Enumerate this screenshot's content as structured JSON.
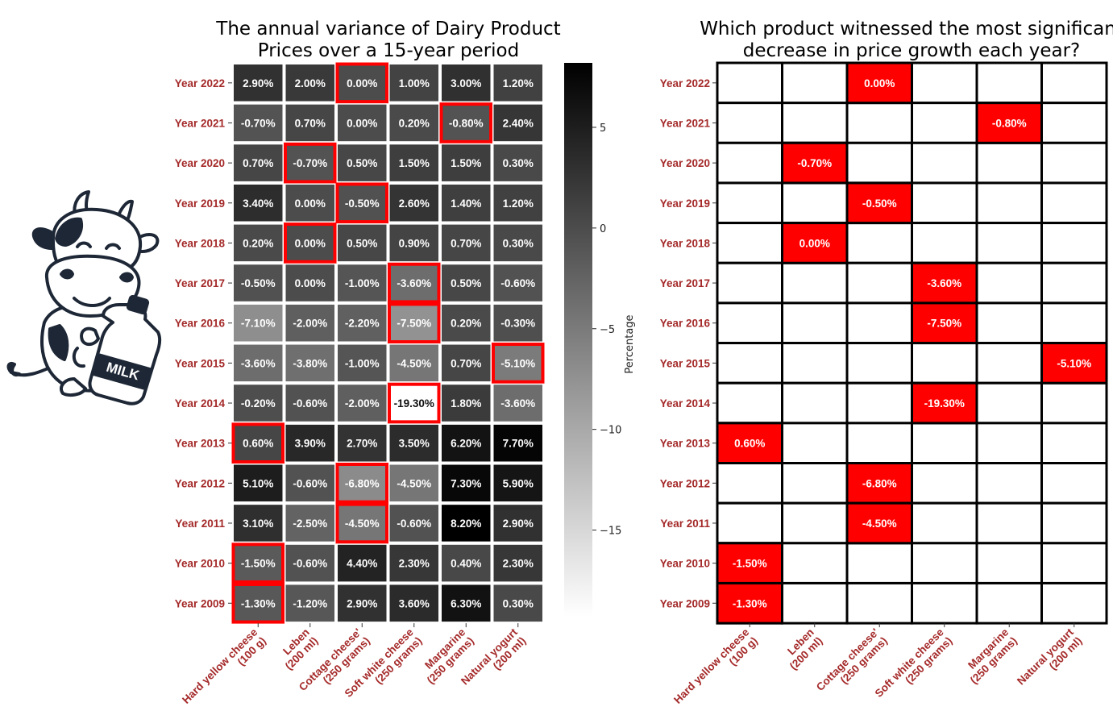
{
  "colors": {
    "label": "#a52a2a",
    "highlight": "#ff0000",
    "grid": "#000000"
  },
  "icons": [
    "cow-with-milk-bottle-icon"
  ],
  "illustration": {
    "bottle_text": "MILK"
  },
  "chart_data": [
    {
      "type": "heatmap",
      "title": "The annual variance of Dairy Product Prices over a 15-year period",
      "title_lines": [
        "The annual variance of Dairy Product",
        "Prices over a 15-year period"
      ],
      "colormap": "grey (white = low, black = high)",
      "colorbar": {
        "label": "Percentage",
        "range": [
          -19.3,
          8.2
        ],
        "ticks": [
          5,
          0,
          -5,
          -10,
          -15
        ],
        "tick_labels": [
          "5",
          "0",
          "−5",
          "−10",
          "−15"
        ]
      },
      "value_format": "percent, 2 decimals",
      "rows": [
        "Year 2022",
        "Year 2021",
        "Year 2020",
        "Year 2019",
        "Year 2018",
        "Year 2017",
        "Year 2016",
        "Year 2015",
        "Year 2014",
        "Year 2013",
        "Year 2012",
        "Year 2011",
        "Year 2010",
        "Year 2009"
      ],
      "columns": [
        [
          "Hard yellow cheese",
          "(100 g)"
        ],
        [
          "Leben",
          "(200 ml)"
        ],
        [
          "Cottage cheese'",
          "(250 grams)"
        ],
        [
          "Soft white cheese",
          "(250 grams)"
        ],
        [
          "Margarine",
          "(250 grams)"
        ],
        [
          "Natural yogurt",
          "(200 ml)"
        ]
      ],
      "values": [
        [
          2.9,
          2.0,
          0.0,
          1.0,
          3.0,
          1.2
        ],
        [
          -0.7,
          0.7,
          0.0,
          0.2,
          -0.8,
          2.4
        ],
        [
          0.7,
          -0.7,
          0.5,
          1.5,
          1.5,
          0.3
        ],
        [
          3.4,
          0.0,
          -0.5,
          2.6,
          1.4,
          1.2
        ],
        [
          0.2,
          0.0,
          0.5,
          0.9,
          0.7,
          0.3
        ],
        [
          -0.5,
          0.0,
          -1.0,
          -3.6,
          0.5,
          -0.6
        ],
        [
          -7.1,
          -2.0,
          -2.2,
          -7.5,
          0.2,
          -0.3
        ],
        [
          -3.6,
          -3.8,
          -1.0,
          -4.5,
          0.7,
          -5.1
        ],
        [
          -0.2,
          -0.6,
          -2.0,
          -19.3,
          1.8,
          -3.6
        ],
        [
          0.6,
          3.9,
          2.7,
          3.5,
          6.2,
          7.7
        ],
        [
          5.1,
          -0.6,
          -6.8,
          -4.5,
          7.3,
          5.9
        ],
        [
          3.1,
          -2.5,
          -4.5,
          -0.6,
          8.2,
          2.9
        ],
        [
          -1.5,
          -0.6,
          4.4,
          2.3,
          0.4,
          2.3
        ],
        [
          -1.3,
          -1.2,
          2.9,
          3.6,
          6.3,
          0.3
        ]
      ],
      "highlighted_column_per_row": [
        2,
        4,
        1,
        2,
        1,
        3,
        3,
        5,
        3,
        0,
        2,
        2,
        0,
        0
      ]
    },
    {
      "type": "table",
      "title": "Which product witnessed the most significant decrease in price growth each year?",
      "title_lines": [
        "Which product witnessed the most significant",
        "decrease in price growth each year?"
      ],
      "rows": [
        "Year 2022",
        "Year 2021",
        "Year 2020",
        "Year 2019",
        "Year 2018",
        "Year 2017",
        "Year 2016",
        "Year 2015",
        "Year 2014",
        "Year 2013",
        "Year 2012",
        "Year 2011",
        "Year 2010",
        "Year 2009"
      ],
      "columns": [
        [
          "Hard yellow cheese",
          "(100 g)"
        ],
        [
          "Leben",
          "(200 ml)"
        ],
        [
          "Cottage cheese'",
          "(250 grams)"
        ],
        [
          "Soft white cheese",
          "(250 grams)"
        ],
        [
          "Margarine",
          "(250 grams)"
        ],
        [
          "Natural yogurt",
          "(200 ml)"
        ]
      ],
      "selected": [
        {
          "row": "Year 2022",
          "col": 2,
          "value": "0.00%"
        },
        {
          "row": "Year 2021",
          "col": 4,
          "value": "-0.80%"
        },
        {
          "row": "Year 2020",
          "col": 1,
          "value": "-0.70%"
        },
        {
          "row": "Year 2019",
          "col": 2,
          "value": "-0.50%"
        },
        {
          "row": "Year 2018",
          "col": 1,
          "value": "0.00%"
        },
        {
          "row": "Year 2017",
          "col": 3,
          "value": "-3.60%"
        },
        {
          "row": "Year 2016",
          "col": 3,
          "value": "-7.50%"
        },
        {
          "row": "Year 2015",
          "col": 5,
          "value": "-5.10%"
        },
        {
          "row": "Year 2014",
          "col": 3,
          "value": "-19.30%"
        },
        {
          "row": "Year 2013",
          "col": 0,
          "value": "0.60%"
        },
        {
          "row": "Year 2012",
          "col": 2,
          "value": "-6.80%"
        },
        {
          "row": "Year 2011",
          "col": 2,
          "value": "-4.50%"
        },
        {
          "row": "Year 2010",
          "col": 0,
          "value": "-1.50%"
        },
        {
          "row": "Year 2009",
          "col": 0,
          "value": "-1.30%"
        }
      ]
    }
  ]
}
